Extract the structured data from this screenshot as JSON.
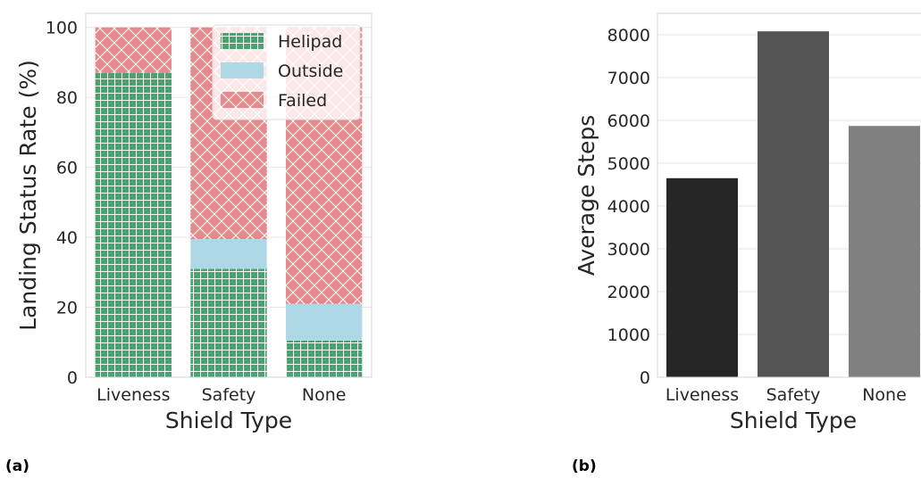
{
  "chart_data": [
    {
      "type": "bar",
      "stacked": true,
      "panel_label": "(a)",
      "title": "",
      "xlabel": "Shield Type",
      "ylabel": "Landing Status Rate (%)",
      "categories": [
        "Liveness",
        "Safety",
        "None"
      ],
      "ylim": [
        0,
        104
      ],
      "yticks": [
        0,
        20,
        40,
        60,
        80,
        100
      ],
      "grid": true,
      "legend_position": "top-right",
      "series": [
        {
          "name": "Helipad",
          "values": [
            87,
            31,
            10.5
          ],
          "color": "#4aa36f",
          "hatch": "grid"
        },
        {
          "name": "Outside",
          "values": [
            0,
            8.5,
            10.5
          ],
          "color": "#add8e6",
          "hatch": "none"
        },
        {
          "name": "Failed",
          "values": [
            13,
            60.5,
            79
          ],
          "color": "#e5898b",
          "hatch": "cross"
        }
      ]
    },
    {
      "type": "bar",
      "panel_label": "(b)",
      "title": "",
      "xlabel": "Shield Type",
      "ylabel": "Average Steps",
      "categories": [
        "Liveness",
        "Safety",
        "None"
      ],
      "values": [
        4650,
        8080,
        5870
      ],
      "colors": [
        "#262626",
        "#545454",
        "#808080"
      ],
      "ylim": [
        0,
        8500
      ],
      "yticks": [
        0,
        1000,
        2000,
        3000,
        4000,
        5000,
        6000,
        7000,
        8000
      ],
      "grid": true
    }
  ]
}
